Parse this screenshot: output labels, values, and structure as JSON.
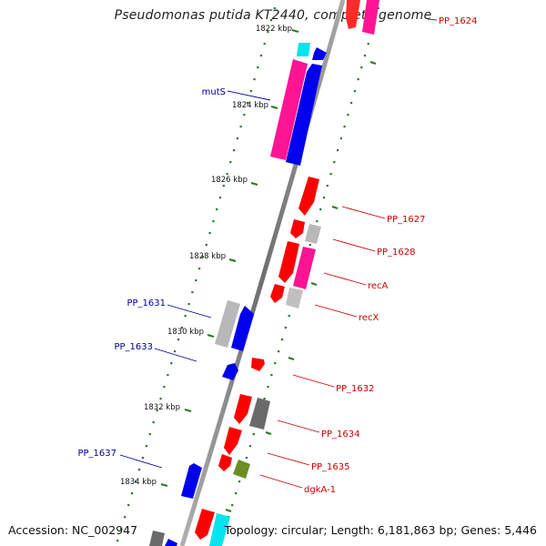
{
  "title": "Pseudomonas putida KT2440, complete genome",
  "footer": {
    "accession": "Accession: NC_002947",
    "summary": "Topology: circular; Length: 6,181,863 bp; Genes: 5,446"
  },
  "colors": {
    "backbone": "#8c8c8c",
    "ticks": "#2a7a2a",
    "forward_label": "#cc0000",
    "reverse_label": "#000099",
    "red_gene": "#ff0000",
    "blue_gene": "#0000ee",
    "pink_gene": "#ff1493",
    "gray_gene": "#b8b8b8",
    "dark_gray_gene": "#6a6a6a",
    "cyan_gene": "#00e5ee",
    "olive_gene": "#6b8e23"
  },
  "scale_labels": [
    "1822 kbp",
    "1824 kbp",
    "1826 kbp",
    "1828 kbp",
    "1830 kbp",
    "1832 kbp",
    "1834 kbp"
  ],
  "gene_labels": [
    {
      "name": "PP_1624",
      "strand": "forward"
    },
    {
      "name": "mutS",
      "strand": "reverse"
    },
    {
      "name": "PP_1627",
      "strand": "forward"
    },
    {
      "name": "PP_1628",
      "strand": "forward"
    },
    {
      "name": "recA",
      "strand": "forward"
    },
    {
      "name": "recX",
      "strand": "forward"
    },
    {
      "name": "PP_1631",
      "strand": "reverse"
    },
    {
      "name": "PP_1633",
      "strand": "reverse"
    },
    {
      "name": "PP_1632",
      "strand": "forward"
    },
    {
      "name": "PP_1634",
      "strand": "forward"
    },
    {
      "name": "PP_1635",
      "strand": "forward"
    },
    {
      "name": "PP_1637",
      "strand": "reverse"
    },
    {
      "name": "dgkA-1",
      "strand": "forward"
    }
  ]
}
